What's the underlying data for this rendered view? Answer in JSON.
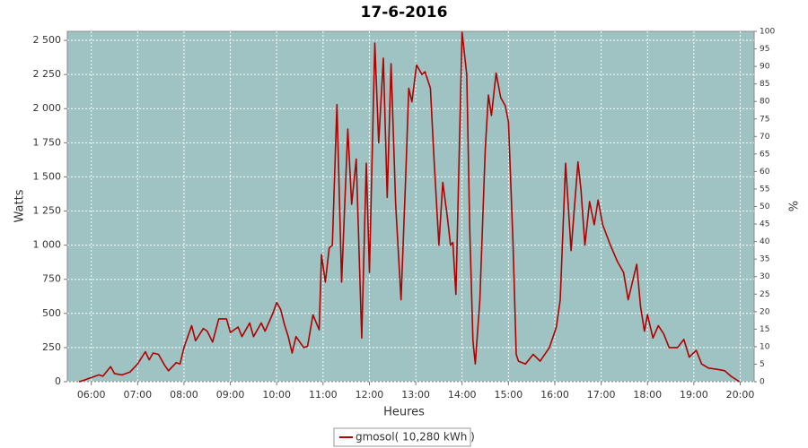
{
  "chart_data": {
    "type": "line",
    "title": "17-6-2016",
    "x_label": "Heures",
    "y_label": "Watts",
    "y2_label": "%",
    "xlim": [
      "05:29",
      "20:18"
    ],
    "xticks": [
      "06:00",
      "07:00",
      "08:00",
      "09:00",
      "10:00",
      "11:00",
      "12:00",
      "13:00",
      "14:00",
      "15:00",
      "16:00",
      "17:00",
      "18:00",
      "19:00",
      "20:00"
    ],
    "ylim": [
      0,
      2566
    ],
    "yticks": [
      0,
      250,
      500,
      750,
      {
        "value": 1000,
        "label": "1 000"
      },
      {
        "value": 1250,
        "label": "1 250"
      },
      {
        "value": 1500,
        "label": "1 500"
      },
      {
        "value": 1750,
        "label": "1 750"
      },
      {
        "value": 2000,
        "label": "2 000"
      },
      {
        "value": 2250,
        "label": "2 250"
      },
      {
        "value": 2500,
        "label": "2 500"
      }
    ],
    "y2lim": [
      0,
      100
    ],
    "y2ticks": [
      0,
      5,
      10,
      15,
      20,
      25,
      30,
      35,
      40,
      45,
      50,
      55,
      60,
      65,
      70,
      75,
      80,
      85,
      90,
      95,
      100
    ],
    "grid": true,
    "legend": "bottom",
    "x": [
      "05:44",
      "05:50",
      "06:00",
      "06:10",
      "06:15",
      "06:25",
      "06:30",
      "06:40",
      "06:50",
      "07:00",
      "07:10",
      "07:15",
      "07:20",
      "07:27",
      "07:35",
      "07:40",
      "07:50",
      "07:55",
      "08:00",
      "08:05",
      "08:10",
      "08:15",
      "08:25",
      "08:30",
      "08:37",
      "08:45",
      "08:55",
      "09:00",
      "09:10",
      "09:15",
      "09:25",
      "09:30",
      "09:40",
      "09:45",
      "09:55",
      "10:00",
      "10:05",
      "10:10",
      "10:15",
      "10:20",
      "10:25",
      "10:35",
      "10:40",
      "10:47",
      "10:55",
      "10:58",
      "11:03",
      "11:08",
      "11:12",
      "11:18",
      "11:24",
      "11:32",
      "11:37",
      "11:43",
      "11:50",
      "11:56",
      "12:00",
      "12:07",
      "12:12",
      "12:18",
      "12:23",
      "12:28",
      "12:34",
      "12:41",
      "12:47",
      "12:51",
      "12:55",
      "13:01",
      "13:08",
      "13:12",
      "13:19",
      "13:24",
      "13:30",
      "13:35",
      "13:41",
      "13:45",
      "13:48",
      "13:52",
      "14:00",
      "14:06",
      "14:10",
      "14:14",
      "14:17",
      "14:23",
      "14:30",
      "14:34",
      "14:38",
      "14:44",
      "14:50",
      "14:56",
      "15:00",
      "15:06",
      "15:10",
      "15:13",
      "15:22",
      "15:32",
      "15:41",
      "15:53",
      "16:02",
      "16:07",
      "16:14",
      "16:21",
      "16:30",
      "16:34",
      "16:39",
      "16:45",
      "16:51",
      "16:56",
      "17:02",
      "17:12",
      "17:21",
      "17:29",
      "17:35",
      "17:46",
      "17:51",
      "17:56",
      "18:00",
      "18:07",
      "18:14",
      "18:21",
      "18:28",
      "18:39",
      "18:47",
      "18:54",
      "19:03",
      "19:10",
      "19:19",
      "19:31",
      "19:40",
      "19:48",
      "19:59"
    ],
    "series": [
      {
        "name": "gmosol( 10,280 kWh )",
        "color": "#b00000",
        "values": [
          0,
          10,
          30,
          50,
          40,
          110,
          60,
          50,
          70,
          130,
          220,
          160,
          210,
          200,
          120,
          80,
          140,
          130,
          250,
          330,
          410,
          300,
          390,
          370,
          290,
          460,
          460,
          360,
          400,
          330,
          430,
          330,
          430,
          370,
          500,
          580,
          530,
          420,
          330,
          210,
          330,
          250,
          260,
          490,
          380,
          930,
          730,
          980,
          1000,
          2030,
          730,
          1850,
          1300,
          1630,
          320,
          1600,
          800,
          2480,
          1750,
          2370,
          1350,
          2330,
          1300,
          600,
          1500,
          2150,
          2050,
          2320,
          2250,
          2270,
          2150,
          1600,
          1000,
          1460,
          1200,
          1000,
          1020,
          640,
          2560,
          2250,
          1100,
          300,
          130,
          600,
          1700,
          2100,
          1950,
          2260,
          2080,
          2020,
          1900,
          1000,
          200,
          150,
          130,
          200,
          150,
          250,
          400,
          600,
          1600,
          960,
          1610,
          1400,
          1000,
          1320,
          1150,
          1330,
          1150,
          1000,
          880,
          800,
          600,
          860,
          550,
          370,
          490,
          320,
          410,
          350,
          250,
          250,
          310,
          180,
          230,
          130,
          100,
          90,
          80,
          40,
          0
        ]
      }
    ]
  }
}
